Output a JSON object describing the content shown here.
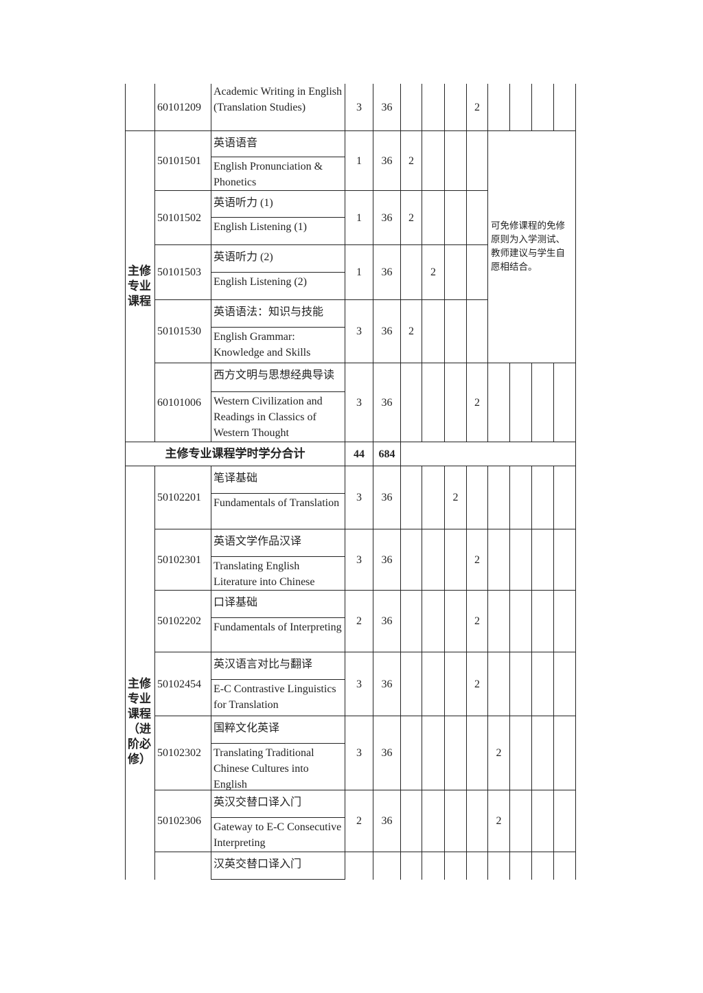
{
  "table": {
    "top": {
      "rows": [
        {
          "code": "60101209",
          "name_en": "Academic Writing in English (Translation Studies)",
          "credits": 3,
          "hours": 36,
          "weekly_hours": [
            null,
            null,
            null,
            2,
            null,
            null,
            null,
            null
          ]
        }
      ]
    },
    "core": {
      "label": "主修专业课程",
      "remark": "可免修课程的免修原则为入学测试、教师建议与学生自愿相结合。",
      "rows": [
        {
          "code": "50101501",
          "name_cn": "英语语音",
          "name_en": "English Pronunciation & Phonetics",
          "credits": 1,
          "hours": 36,
          "weekly_hours": [
            2,
            null,
            null,
            null,
            null,
            null,
            null,
            null
          ]
        },
        {
          "code": "50101502",
          "name_cn": "英语听力 (1)",
          "name_en": "English Listening (1)",
          "credits": 1,
          "hours": 36,
          "weekly_hours": [
            2,
            null,
            null,
            null,
            null,
            null,
            null,
            null
          ]
        },
        {
          "code": "50101503",
          "name_cn": "英语听力 (2)",
          "name_en": "English Listening (2)",
          "credits": 1,
          "hours": 36,
          "weekly_hours": [
            null,
            2,
            null,
            null,
            null,
            null,
            null,
            null
          ]
        },
        {
          "code": "50101530",
          "name_cn": "英语语法：知识与技能",
          "name_en": "English Grammar: Knowledge and Skills",
          "credits": 3,
          "hours": 36,
          "weekly_hours": [
            2,
            null,
            null,
            null,
            null,
            null,
            null,
            null
          ]
        },
        {
          "code": "60101006",
          "name_cn": "西方文明与思想经典导读",
          "name_en": "Western Civilization and Readings in Classics of Western Thought",
          "credits": 3,
          "hours": 36,
          "weekly_hours": [
            null,
            null,
            null,
            2,
            null,
            null,
            null,
            null
          ]
        }
      ]
    },
    "core_total": {
      "label": "主修专业课程学时学分合计",
      "credits": 44,
      "hours": 684
    },
    "advanced": {
      "label": "主修专业课程（进阶必修）",
      "rows": [
        {
          "code": "50102201",
          "name_cn": "笔译基础",
          "name_en": "Fundamentals of Translation",
          "credits": 3,
          "hours": 36,
          "weekly_hours": [
            null,
            null,
            2,
            null,
            null,
            null,
            null,
            null
          ]
        },
        {
          "code": "50102301",
          "name_cn": "英语文学作品汉译",
          "name_en": "Translating English Literature into Chinese",
          "credits": 3,
          "hours": 36,
          "weekly_hours": [
            null,
            null,
            null,
            2,
            null,
            null,
            null,
            null
          ]
        },
        {
          "code": "50102202",
          "name_cn": "口译基础",
          "name_en": "Fundamentals of Interpreting",
          "credits": 2,
          "hours": 36,
          "weekly_hours": [
            null,
            null,
            null,
            2,
            null,
            null,
            null,
            null
          ]
        },
        {
          "code": "50102454",
          "name_cn": "英汉语言对比与翻译",
          "name_en": "E-C Contrastive Linguistics for Translation",
          "credits": 3,
          "hours": 36,
          "weekly_hours": [
            null,
            null,
            null,
            2,
            null,
            null,
            null,
            null
          ]
        },
        {
          "code": "50102302",
          "name_cn": "国粹文化英译",
          "name_en": "Translating Traditional Chinese Cultures into English",
          "credits": 3,
          "hours": 36,
          "weekly_hours": [
            null,
            null,
            null,
            null,
            2,
            null,
            null,
            null
          ]
        },
        {
          "code": "50102306",
          "name_cn": "英汉交替口译入门",
          "name_en": "Gateway to E-C Consecutive Interpreting",
          "credits": 2,
          "hours": 36,
          "weekly_hours": [
            null,
            null,
            null,
            null,
            2,
            null,
            null,
            null
          ]
        },
        {
          "name_cn": "汉英交替口译入门"
        }
      ]
    }
  }
}
